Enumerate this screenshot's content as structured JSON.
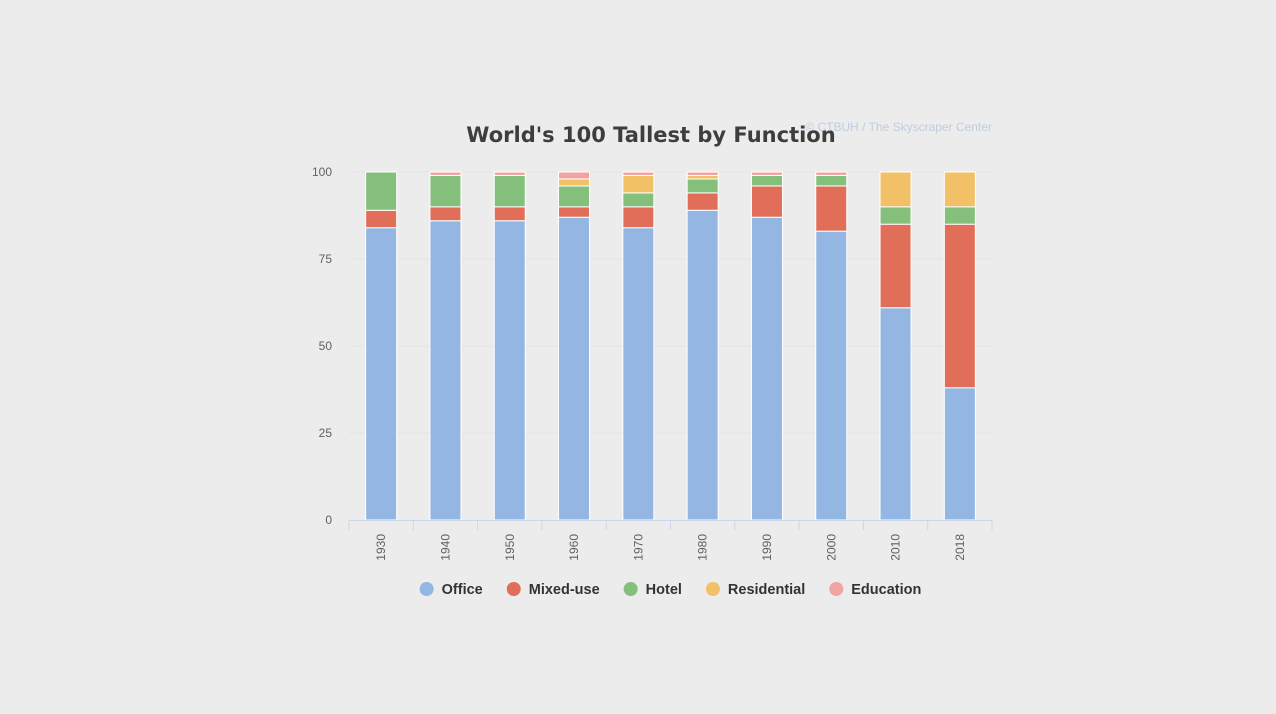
{
  "chart_data": {
    "type": "bar",
    "stacked": true,
    "title": "World's 100 Tallest by Function",
    "credit": "© CTBUH / The Skyscraper Center",
    "xlabel": "",
    "ylabel": "",
    "ylim": [
      0,
      100
    ],
    "yticks": [
      0,
      25,
      50,
      75,
      100
    ],
    "grid": true,
    "legend_position": "bottom",
    "categories": [
      "1930",
      "1940",
      "1950",
      "1960",
      "1970",
      "1980",
      "1990",
      "2000",
      "2010",
      "2018"
    ],
    "series": [
      {
        "name": "Office",
        "color": "#93b6e3",
        "values": [
          84,
          86,
          86,
          87,
          84,
          89,
          87,
          83,
          61,
          38
        ]
      },
      {
        "name": "Mixed-use",
        "color": "#e06e58",
        "values": [
          5,
          4,
          4,
          3,
          6,
          5,
          9,
          13,
          24,
          47
        ]
      },
      {
        "name": "Hotel",
        "color": "#84c07b",
        "values": [
          11,
          9,
          9,
          6,
          4,
          4,
          3,
          3,
          5,
          5
        ]
      },
      {
        "name": "Residential",
        "color": "#f2c066",
        "values": [
          0,
          0,
          0,
          2,
          5,
          1,
          0,
          0,
          10,
          10
        ]
      },
      {
        "name": "Education",
        "color": "#f2a3a3",
        "values": [
          0,
          1,
          1,
          2,
          1,
          1,
          1,
          1,
          0,
          0
        ]
      }
    ]
  }
}
